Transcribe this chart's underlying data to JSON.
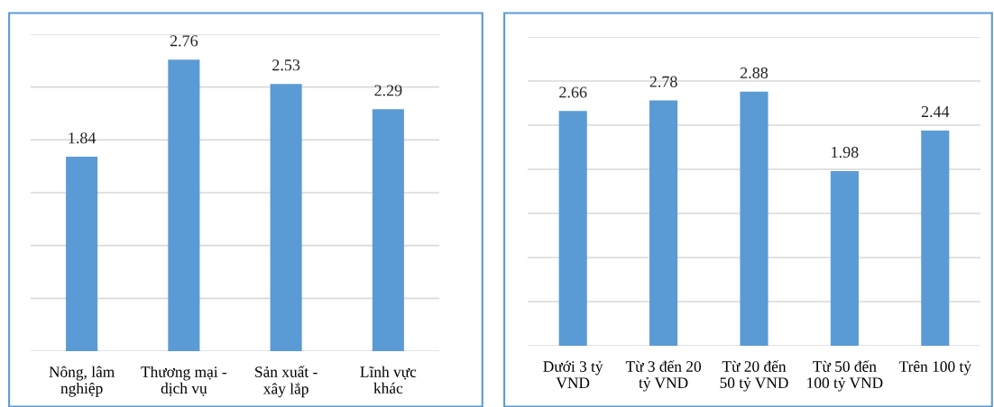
{
  "chart_data": [
    {
      "type": "bar",
      "categories": [
        "Nông, lâm\nnghiệp",
        "Thương mại -\ndịch vụ",
        "Sản xuất -\nxây lắp",
        "Lĩnh vực\nkhác"
      ],
      "series": [
        {
          "color": "#5b9bd5",
          "values": [
            1.84,
            2.76,
            2.53,
            2.29
          ]
        }
      ],
      "ylim": [
        0,
        3
      ],
      "yticks": [
        {
          "value": 0,
          "label": null
        },
        {
          "value": 0.5,
          "label": null
        },
        {
          "value": 1,
          "label": null
        },
        {
          "value": 1.5,
          "label": null
        },
        {
          "value": 2,
          "label": null
        },
        {
          "value": 2.5,
          "label": null
        },
        {
          "value": 3,
          "label": null
        }
      ],
      "tick_labels": "x",
      "grid": "y",
      "data_labels": true,
      "legend": false
    },
    {
      "type": "bar",
      "categories": [
        "Dưới 3 tỷ\nVND",
        "Từ 3 đến 20\ntỷ VND",
        "Từ 20 đến\n50 tỷ VND",
        "Từ 50 đến\n100 tỷ VND",
        "Trên 100 tỷ"
      ],
      "series": [
        {
          "color": "#5b9bd5",
          "values": [
            2.66,
            2.78,
            2.88,
            1.98,
            2.44
          ]
        }
      ],
      "ylim": [
        0,
        3.5
      ],
      "yticks": [
        {
          "value": 0,
          "label": null
        },
        {
          "value": 0.5,
          "label": null
        },
        {
          "value": 1,
          "label": null
        },
        {
          "value": 1.5,
          "label": null
        },
        {
          "value": 2,
          "label": null
        },
        {
          "value": 2.5,
          "label": null
        },
        {
          "value": 3,
          "label": null
        },
        {
          "value": 3.5,
          "label": null
        }
      ],
      "tick_labels": "x",
      "grid": "y",
      "data_labels": true,
      "legend": false
    }
  ]
}
